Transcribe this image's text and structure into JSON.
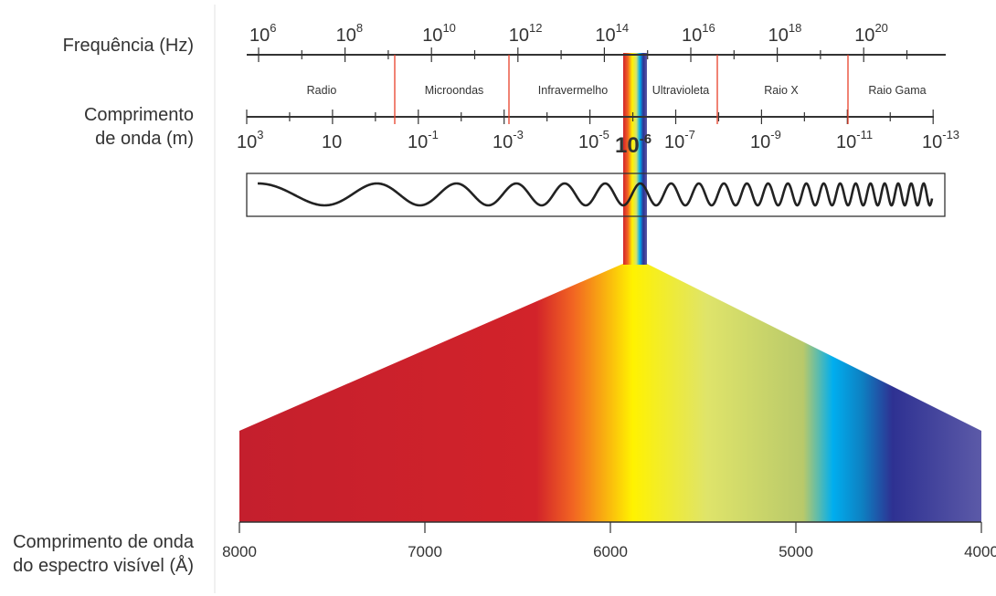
{
  "labels": {
    "frequency_axis": "Frequência (Hz)",
    "wavelength_axis_line1": "Comprimento",
    "wavelength_axis_line2": "de onda (m)",
    "visible_axis_line1": "Comprimento de onda",
    "visible_axis_line2": "do espectro visível (Å)"
  },
  "frequency_ticks": [
    {
      "base": "10",
      "exp": "6"
    },
    {
      "base": "10",
      "exp": "8"
    },
    {
      "base": "10",
      "exp": "10"
    },
    {
      "base": "10",
      "exp": "12"
    },
    {
      "base": "10",
      "exp": "14"
    },
    {
      "base": "10",
      "exp": "16"
    },
    {
      "base": "10",
      "exp": "18"
    },
    {
      "base": "10",
      "exp": "20"
    }
  ],
  "wavelength_ticks": [
    {
      "base": "10",
      "exp": "3"
    },
    {
      "base": "10",
      "exp": ""
    },
    {
      "base": "10",
      "exp": "-1"
    },
    {
      "base": "10",
      "exp": "-3"
    },
    {
      "base": "10",
      "exp": "-5"
    },
    {
      "base": "10",
      "exp": "-7"
    },
    {
      "base": "10",
      "exp": "-9"
    },
    {
      "base": "10",
      "exp": "-11"
    },
    {
      "base": "10",
      "exp": "-13"
    }
  ],
  "highlight_tick": {
    "base": "10",
    "exp": "-6"
  },
  "regions": [
    "Radio",
    "Microondas",
    "Infravermelho",
    "Ultravioleta",
    "Raio X",
    "Raio Gama"
  ],
  "visible_scale": [
    "8000",
    "7000",
    "6000",
    "5000",
    "4000"
  ],
  "colors": {
    "axis": "#333333",
    "divider": "#e8402a",
    "wave": "#222222",
    "red": "#d2232a",
    "orange": "#f47a20",
    "yellow": "#fff200",
    "green": "#cfe05a",
    "cyan": "#00aeef",
    "blue": "#2e3192",
    "violet": "#5f5ea9"
  }
}
